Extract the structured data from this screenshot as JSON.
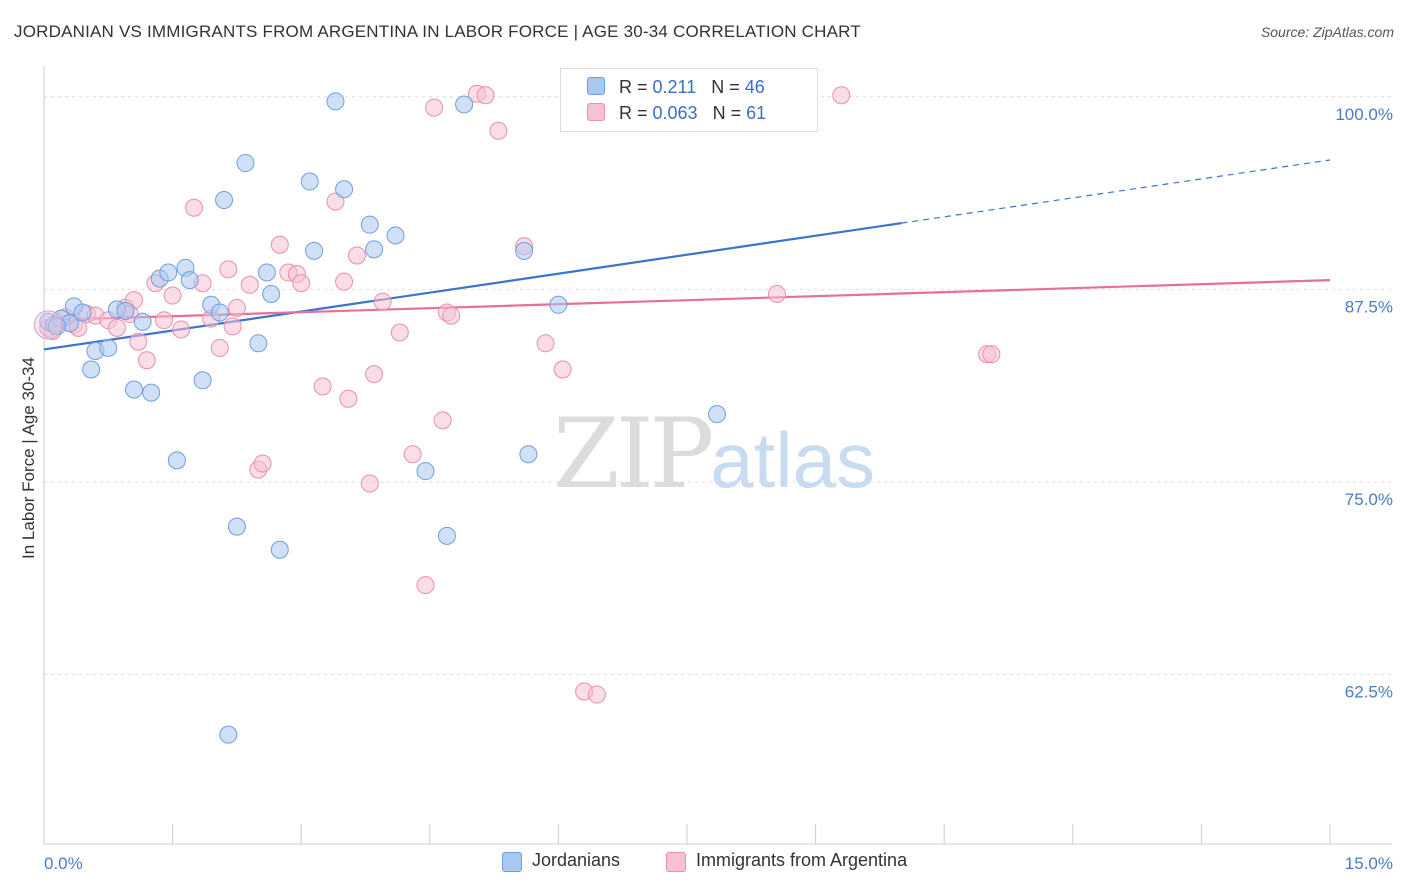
{
  "title": "JORDANIAN VS IMMIGRANTS FROM ARGENTINA IN LABOR FORCE | AGE 30-34 CORRELATION CHART",
  "source": "Source: ZipAtlas.com",
  "watermark": {
    "zip": "ZIP",
    "atlas": "atlas"
  },
  "legend": {
    "rows": [
      {
        "r_label": "R = ",
        "r_value": "0.211",
        "n_label": "N = ",
        "n_value": "46",
        "color": "#a9c8f0",
        "border": "#6f9ee0"
      },
      {
        "r_label": "R = ",
        "r_value": "0.063",
        "n_label": "N = ",
        "n_value": "61",
        "color": "#f6c1d2",
        "border": "#e98fad"
      }
    ]
  },
  "bottom_legend": [
    {
      "label": "Jordanians",
      "color": "#a9c8f0",
      "border": "#6f9ee0"
    },
    {
      "label": "Immigrants from Argentina",
      "color": "#f6c1d2",
      "border": "#e98fad"
    }
  ],
  "chart_data": {
    "type": "scatter",
    "xlabel": "",
    "ylabel": "In Labor Force | Age 30-34",
    "xlim": [
      0,
      15
    ],
    "ylim": [
      51.5,
      102
    ],
    "x_tick_labels": [
      {
        "value": 0,
        "label": "0.0%"
      },
      {
        "value": 15,
        "label": "15.0%"
      }
    ],
    "y_tick_labels": [
      {
        "value": 100,
        "label": "100.0%"
      },
      {
        "value": 87.5,
        "label": "87.5%"
      },
      {
        "value": 75,
        "label": "75.0%"
      },
      {
        "value": 62.5,
        "label": "62.5%"
      }
    ],
    "grid": "horizontal dashed",
    "series": [
      {
        "name": "Jordanians",
        "color": "#a9c8f0",
        "stroke": "#6f9ee0",
        "line_color": "#3b74cc",
        "trend": {
          "x0": 0,
          "y0": 83.6,
          "x1": 10.0,
          "y1": 91.8,
          "x_ext": 15,
          "y_ext": 95.9
        },
        "points": [
          [
            0.05,
            85.4
          ],
          [
            0.12,
            85.2
          ],
          [
            0.2,
            85.6
          ],
          [
            0.35,
            86.4
          ],
          [
            0.45,
            86.0
          ],
          [
            0.55,
            82.3
          ],
          [
            0.6,
            83.5
          ],
          [
            0.75,
            83.7
          ],
          [
            0.85,
            86.2
          ],
          [
            0.95,
            86.1
          ],
          [
            1.05,
            81.0
          ],
          [
            1.15,
            85.4
          ],
          [
            1.25,
            80.8
          ],
          [
            1.35,
            88.2
          ],
          [
            1.45,
            88.6
          ],
          [
            1.55,
            76.4
          ],
          [
            1.65,
            88.9
          ],
          [
            1.7,
            88.1
          ],
          [
            1.85,
            81.6
          ],
          [
            1.95,
            86.5
          ],
          [
            2.05,
            86.0
          ],
          [
            2.1,
            93.3
          ],
          [
            2.15,
            58.6
          ],
          [
            2.25,
            72.1
          ],
          [
            2.35,
            95.7
          ],
          [
            2.5,
            84.0
          ],
          [
            2.6,
            88.6
          ],
          [
            2.65,
            87.2
          ],
          [
            2.75,
            70.6
          ],
          [
            3.1,
            94.5
          ],
          [
            3.15,
            90.0
          ],
          [
            3.4,
            99.7
          ],
          [
            3.5,
            94.0
          ],
          [
            3.8,
            91.7
          ],
          [
            3.85,
            90.1
          ],
          [
            4.1,
            91.0
          ],
          [
            4.45,
            75.7
          ],
          [
            4.7,
            71.5
          ],
          [
            4.9,
            99.5
          ],
          [
            5.6,
            90.0
          ],
          [
            5.65,
            76.8
          ],
          [
            6.0,
            86.5
          ],
          [
            7.85,
            79.4
          ],
          [
            7.6,
            100.2
          ],
          [
            0.3,
            85.3
          ],
          [
            0.15,
            85.1
          ]
        ]
      },
      {
        "name": "Immigrants from Argentina",
        "color": "#f6c1d2",
        "stroke": "#e98fad",
        "line_color": "#e6709a",
        "trend": {
          "x0": 0,
          "y0": 85.5,
          "x1": 15,
          "y1": 88.1
        },
        "points": [
          [
            0.05,
            85.0
          ],
          [
            0.15,
            85.3
          ],
          [
            0.25,
            85.7
          ],
          [
            0.35,
            85.2
          ],
          [
            0.5,
            85.9
          ],
          [
            0.6,
            85.8
          ],
          [
            0.75,
            85.5
          ],
          [
            0.85,
            85.0
          ],
          [
            0.95,
            86.3
          ],
          [
            1.05,
            86.8
          ],
          [
            1.1,
            84.1
          ],
          [
            1.2,
            82.9
          ],
          [
            1.3,
            87.9
          ],
          [
            1.4,
            85.5
          ],
          [
            1.5,
            87.1
          ],
          [
            1.6,
            84.9
          ],
          [
            1.75,
            92.8
          ],
          [
            1.85,
            87.9
          ],
          [
            1.95,
            85.6
          ],
          [
            2.05,
            83.7
          ],
          [
            2.15,
            88.8
          ],
          [
            2.25,
            86.3
          ],
          [
            2.4,
            87.8
          ],
          [
            2.5,
            75.8
          ],
          [
            2.55,
            76.2
          ],
          [
            2.75,
            90.4
          ],
          [
            2.85,
            88.6
          ],
          [
            2.95,
            88.5
          ],
          [
            3.0,
            87.9
          ],
          [
            3.25,
            81.2
          ],
          [
            3.4,
            93.2
          ],
          [
            3.5,
            88.0
          ],
          [
            3.55,
            80.4
          ],
          [
            3.65,
            89.7
          ],
          [
            3.8,
            74.9
          ],
          [
            3.85,
            82.0
          ],
          [
            3.95,
            86.7
          ],
          [
            4.15,
            84.7
          ],
          [
            4.3,
            76.8
          ],
          [
            4.45,
            68.3
          ],
          [
            4.55,
            99.3
          ],
          [
            4.65,
            79.0
          ],
          [
            4.7,
            86.0
          ],
          [
            4.75,
            85.8
          ],
          [
            5.05,
            100.2
          ],
          [
            5.15,
            100.1
          ],
          [
            5.3,
            97.8
          ],
          [
            5.6,
            90.3
          ],
          [
            5.85,
            84.0
          ],
          [
            6.05,
            82.3
          ],
          [
            6.3,
            61.4
          ],
          [
            6.45,
            61.2
          ],
          [
            7.1,
            100.1
          ],
          [
            8.55,
            87.2
          ],
          [
            9.3,
            100.1
          ],
          [
            11.0,
            83.3
          ],
          [
            11.05,
            83.3
          ],
          [
            0.1,
            84.8
          ],
          [
            0.4,
            85.0
          ],
          [
            1.0,
            85.9
          ],
          [
            2.2,
            85.1
          ]
        ]
      }
    ]
  }
}
